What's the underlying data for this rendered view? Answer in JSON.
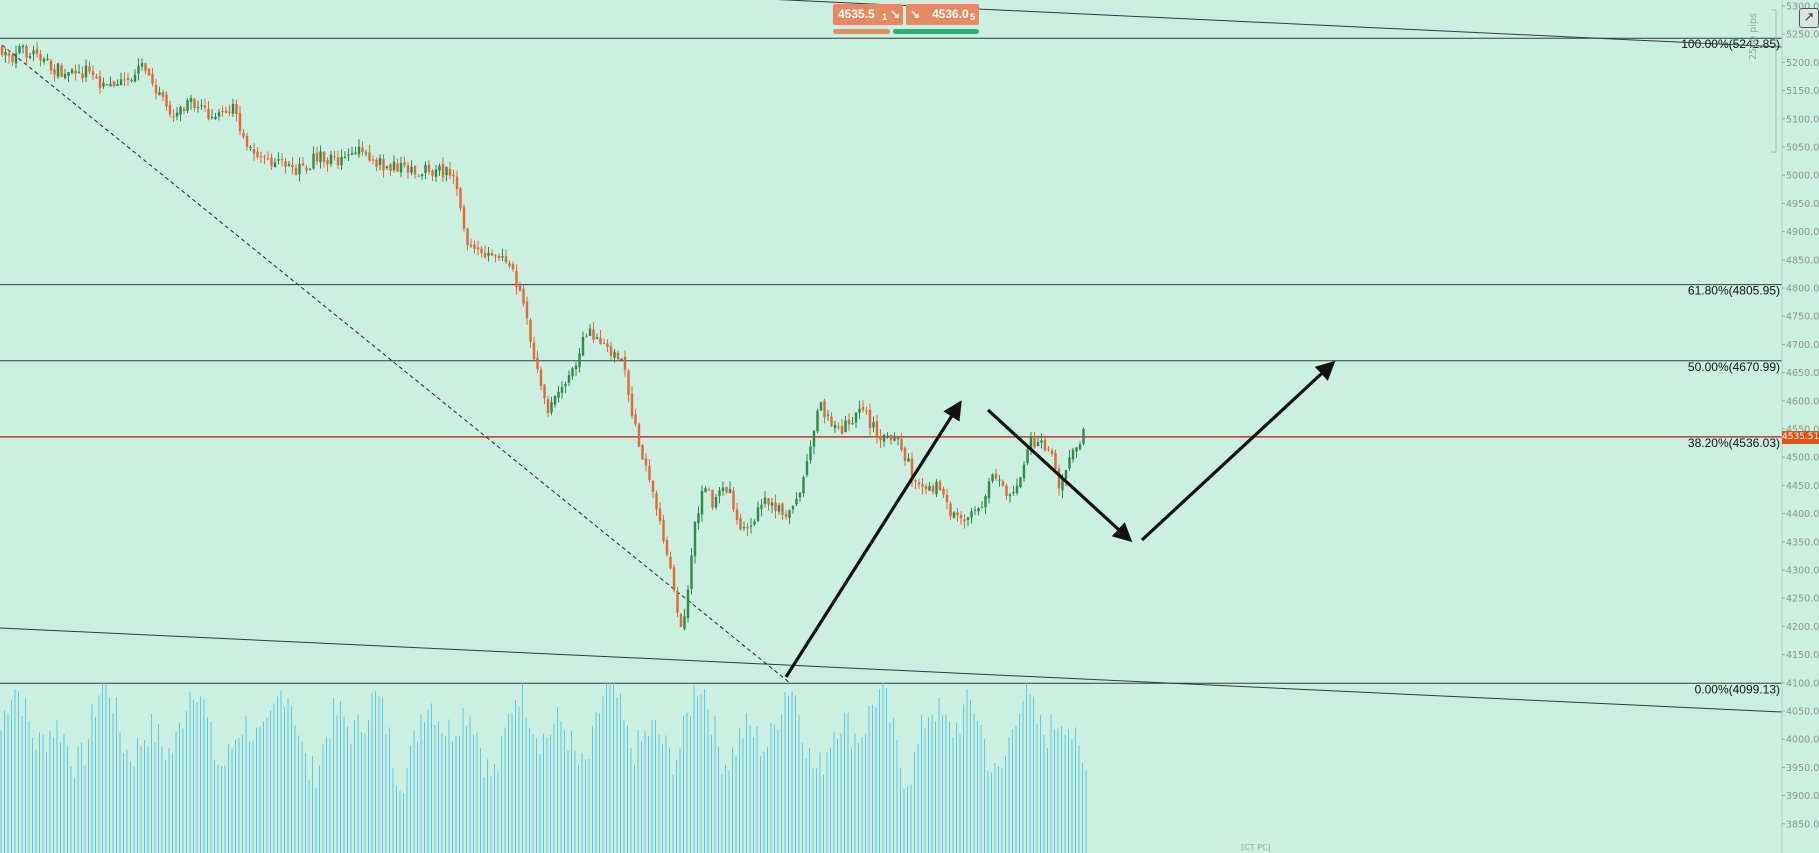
{
  "trade_panel": {
    "sell_price": "4535.5",
    "sell_sub": "1",
    "sell_icon": "arrow-down-right-icon",
    "buy_icon": "arrow-down-right-icon",
    "buy_price": "4536.0",
    "buy_sub": "5"
  },
  "current_price_tag": "4535.51",
  "pips_label": "2500 pips",
  "bottom_tag": "[СТ РС]",
  "colors": {
    "background": "#cbefe0",
    "bull": "#2f8a4a",
    "bear": "#e0683a",
    "volume": "#5ec7e2",
    "price_line": "#c0392b"
  },
  "chart_data": {
    "type": "candlestick",
    "title": "",
    "xlabel": "",
    "ylabel": "",
    "ylim": [
      3800,
      5300
    ],
    "y_ticks": [
      "5300.0",
      "5250.0",
      "5200.0",
      "5150.0",
      "5100.0",
      "5050.0",
      "5000.0",
      "4950.0",
      "4900.0",
      "4850.0",
      "4800.0",
      "4750.0",
      "4700.0",
      "4650.0",
      "4600.0",
      "4550.0",
      "4500.0",
      "4450.0",
      "4400.0",
      "4350.0",
      "4300.0",
      "4250.0",
      "4200.0",
      "4150.0",
      "4100.0",
      "4050.0",
      "4000.0",
      "3950.0",
      "3900.0",
      "3850.0"
    ],
    "current_price": 4535.51,
    "fib_levels": [
      {
        "label": "100.00%(5242.85)",
        "value": 5242.85
      },
      {
        "label": "61.80%(4805.95)",
        "value": 4805.95
      },
      {
        "label": "50.00%(4670.99)",
        "value": 4670.99
      },
      {
        "label": "38.20%(4536.03)",
        "value": 4536.03
      },
      {
        "label": "0.00%(4099.13)",
        "value": 4099.13
      }
    ],
    "price_path": [
      [
        0,
        5230
      ],
      [
        12,
        5195
      ],
      [
        22,
        5225
      ],
      [
        40,
        5205
      ],
      [
        55,
        5190
      ],
      [
        70,
        5180
      ],
      [
        90,
        5185
      ],
      [
        108,
        5150
      ],
      [
        125,
        5170
      ],
      [
        142,
        5190
      ],
      [
        158,
        5145
      ],
      [
        172,
        5100
      ],
      [
        188,
        5130
      ],
      [
        205,
        5110
      ],
      [
        222,
        5105
      ],
      [
        232,
        5120
      ],
      [
        245,
        5060
      ],
      [
        262,
        5030
      ],
      [
        280,
        5020
      ],
      [
        300,
        5010
      ],
      [
        320,
        5035
      ],
      [
        340,
        5020
      ],
      [
        358,
        5045
      ],
      [
        375,
        5025
      ],
      [
        392,
        5015
      ],
      [
        415,
        5010
      ],
      [
        435,
        5008
      ],
      [
        450,
        5003
      ],
      [
        458,
        4970
      ],
      [
        468,
        4880
      ],
      [
        480,
        4870
      ],
      [
        490,
        4850
      ],
      [
        505,
        4860
      ],
      [
        518,
        4800
      ],
      [
        528,
        4730
      ],
      [
        538,
        4650
      ],
      [
        548,
        4590
      ],
      [
        560,
        4610
      ],
      [
        572,
        4650
      ],
      [
        582,
        4700
      ],
      [
        590,
        4730
      ],
      [
        600,
        4700
      ],
      [
        612,
        4680
      ],
      [
        622,
        4670
      ],
      [
        630,
        4600
      ],
      [
        640,
        4520
      ],
      [
        650,
        4460
      ],
      [
        660,
        4380
      ],
      [
        670,
        4320
      ],
      [
        680,
        4180
      ],
      [
        688,
        4260
      ],
      [
        696,
        4390
      ],
      [
        704,
        4450
      ],
      [
        712,
        4420
      ],
      [
        722,
        4445
      ],
      [
        732,
        4430
      ],
      [
        742,
        4360
      ],
      [
        752,
        4390
      ],
      [
        762,
        4420
      ],
      [
        772,
        4410
      ],
      [
        782,
        4400
      ],
      [
        792,
        4410
      ],
      [
        802,
        4440
      ],
      [
        812,
        4540
      ],
      [
        820,
        4590
      ],
      [
        830,
        4560
      ],
      [
        842,
        4550
      ],
      [
        852,
        4570
      ],
      [
        862,
        4580
      ],
      [
        872,
        4560
      ],
      [
        882,
        4530
      ],
      [
        892,
        4530
      ],
      [
        902,
        4520
      ],
      [
        912,
        4470
      ],
      [
        922,
        4440
      ],
      [
        932,
        4450
      ],
      [
        942,
        4440
      ],
      [
        952,
        4400
      ],
      [
        962,
        4380
      ],
      [
        972,
        4400
      ],
      [
        982,
        4420
      ],
      [
        992,
        4460
      ],
      [
        1002,
        4450
      ],
      [
        1012,
        4420
      ],
      [
        1022,
        4470
      ],
      [
        1030,
        4530
      ],
      [
        1040,
        4520
      ],
      [
        1050,
        4510
      ],
      [
        1058,
        4450
      ],
      [
        1066,
        4480
      ],
      [
        1074,
        4510
      ],
      [
        1084,
        4540
      ]
    ],
    "last_candle_index": 1084,
    "volume_range": [
      0.45,
      1.0
    ]
  }
}
